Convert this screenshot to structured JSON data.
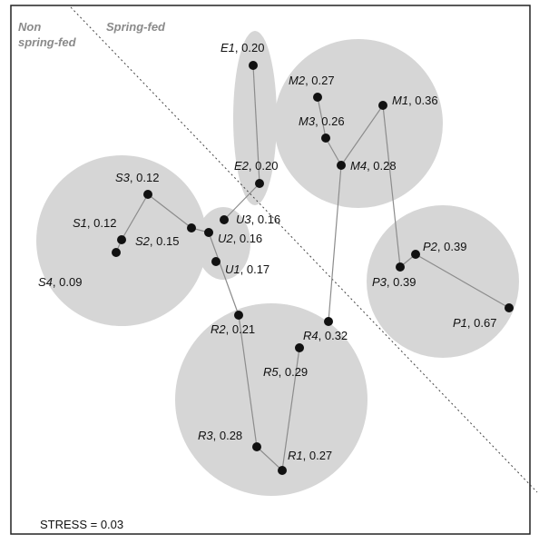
{
  "region_labels": {
    "left_line1": "Non",
    "left_line2": "spring-fed",
    "right": "Spring-fed"
  },
  "stress_text": "STRESS = 0.03",
  "colors": {
    "cluster_fill": "#d6d6d6",
    "point": "#111111",
    "line": "#8c8c8c",
    "divider": "#444444",
    "region_text": "#8a8a8a"
  },
  "points": [
    {
      "id": "E1",
      "value": ", 0.20"
    },
    {
      "id": "E2",
      "value": ", 0.20"
    },
    {
      "id": "M2",
      "value": ", 0.27"
    },
    {
      "id": "M1",
      "value": ", 0.36"
    },
    {
      "id": "M3",
      "value": ", 0.26"
    },
    {
      "id": "M4",
      "value": ", 0.28"
    },
    {
      "id": "S3",
      "value": ", 0.12"
    },
    {
      "id": "S1",
      "value": ", 0.12"
    },
    {
      "id": "S2",
      "value": ", 0.15"
    },
    {
      "id": "S4",
      "value": ", 0.09"
    },
    {
      "id": "U3",
      "value": ", 0.16"
    },
    {
      "id": "U2",
      "value": ", 0.16"
    },
    {
      "id": "U1",
      "value": ", 0.17"
    },
    {
      "id": "P2",
      "value": ", 0.39"
    },
    {
      "id": "P3",
      "value": ", 0.39"
    },
    {
      "id": "P1",
      "value": ", 0.67"
    },
    {
      "id": "R2",
      "value": ", 0.21"
    },
    {
      "id": "R4",
      "value": ", 0.32"
    },
    {
      "id": "R5",
      "value": ", 0.29"
    },
    {
      "id": "R3",
      "value": ", 0.28"
    },
    {
      "id": "R1",
      "value": ", 0.27"
    }
  ],
  "trajectories": [
    {
      "group": "E",
      "sequence": [
        "E1",
        "E2"
      ]
    },
    {
      "group": "M",
      "sequence": [
        "M2",
        "M3",
        "M4",
        "M1"
      ]
    },
    {
      "group": "S",
      "sequence": [
        "S4",
        "S1",
        "S3",
        "S2"
      ]
    },
    {
      "group": "P",
      "sequence": [
        "P3",
        "P2",
        "P1"
      ]
    },
    {
      "group": "R",
      "sequence": [
        "R2",
        "R3",
        "R1",
        "R5"
      ]
    },
    {
      "group": "bridges",
      "links": [
        [
          "S2",
          "U2"
        ],
        [
          "U3",
          "E2"
        ],
        [
          "U2",
          "R2"
        ],
        [
          "M4",
          "R4"
        ],
        [
          "M1",
          "P3"
        ]
      ]
    }
  ]
}
